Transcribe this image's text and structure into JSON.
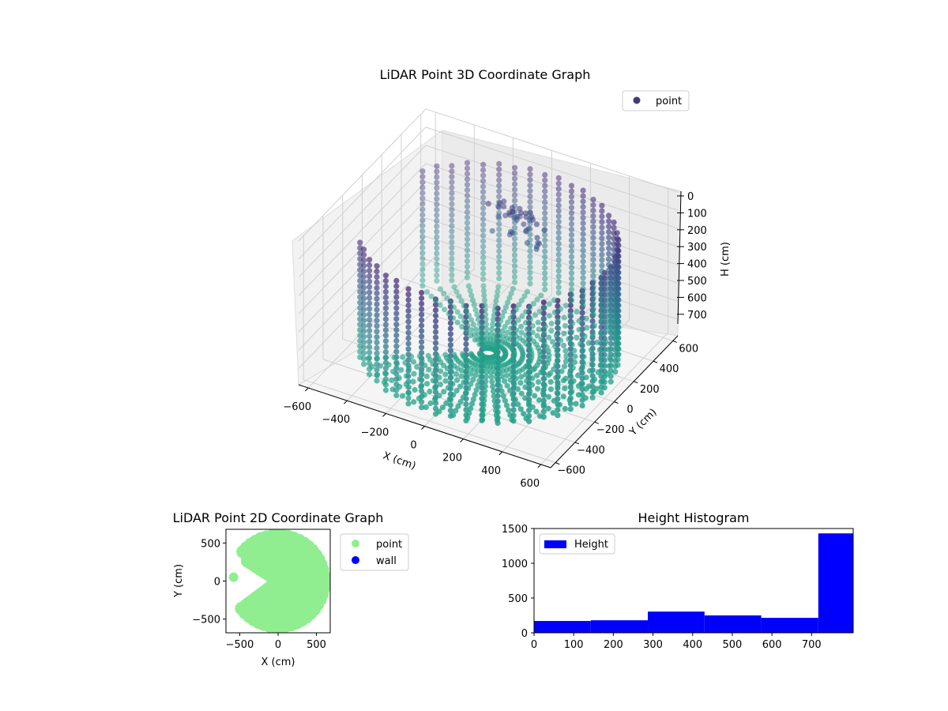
{
  "chart_data": [
    {
      "type": "scatter",
      "projection": "3d",
      "title": "LiDAR Point 3D Coordinate Graph",
      "xlabel": "X (cm)",
      "ylabel": "Y (cm)",
      "zlabel": "H (cm)",
      "xlim": [
        -650,
        650
      ],
      "ylim": [
        -650,
        650
      ],
      "zlim": [
        790,
        0
      ],
      "xticks": [
        "−600",
        "−400",
        "−200",
        "0",
        "200",
        "400",
        "600"
      ],
      "yticks": [
        "−600",
        "−400",
        "−200",
        "0",
        "200",
        "400",
        "600"
      ],
      "zticks": [
        "0",
        "100",
        "200",
        "300",
        "400",
        "500",
        "600",
        "700"
      ],
      "legend": {
        "entries": [
          "point"
        ],
        "placement": "top-right",
        "color": "#453781"
      },
      "colormap": "viridis",
      "point_model": {
        "wall_radius": 600,
        "wall_h_range": [
          100,
          750
        ],
        "floor_h": 750
      }
    },
    {
      "type": "scatter",
      "title": "LiDAR Point 2D Coordinate Graph",
      "xlabel": "X (cm)",
      "ylabel": "Y (cm)",
      "xlim": [
        -680,
        680
      ],
      "ylim": [
        -680,
        680
      ],
      "xticks": [
        "−500",
        "0",
        "500"
      ],
      "yticks": [
        "500",
        "0",
        "−500"
      ],
      "legend": {
        "entries": [
          {
            "label": "point",
            "color": "#90ee90"
          },
          {
            "label": "wall",
            "color": "#0000ff"
          }
        ],
        "placement": "outside-right"
      }
    },
    {
      "type": "bar",
      "title": "Height Histogram",
      "bin_edges": [
        0,
        143,
        287,
        430,
        573,
        717,
        860
      ],
      "values": [
        170,
        180,
        305,
        250,
        215,
        1430
      ],
      "xlim": [
        0,
        805
      ],
      "ylim": [
        0,
        1500
      ],
      "xticks": [
        0,
        100,
        200,
        300,
        400,
        500,
        600,
        700
      ],
      "yticks": [
        0,
        500,
        1000,
        1500
      ],
      "legend": {
        "entries": [
          "Height"
        ],
        "placement": "top-left"
      },
      "color": "#0000ff"
    }
  ]
}
